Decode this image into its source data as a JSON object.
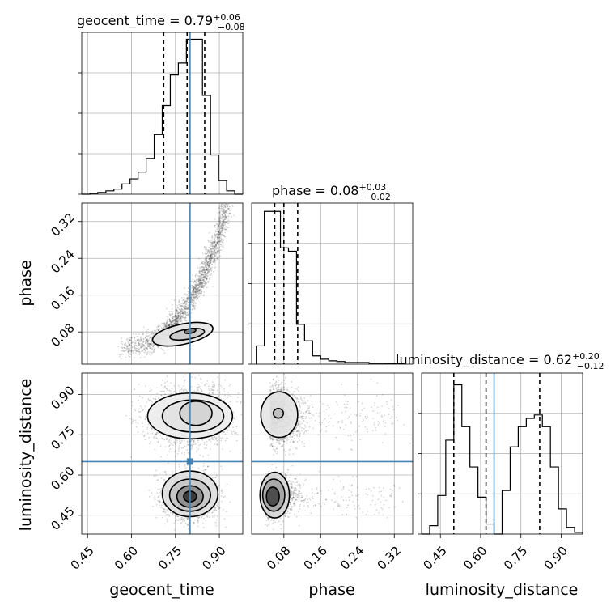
{
  "chart_data": {
    "type": "corner",
    "parameters": [
      "geocent_time",
      "phase",
      "luminosity_distance"
    ],
    "truth": {
      "geocent_time": 0.8,
      "phase": 0.07,
      "luminosity_distance": 0.65
    },
    "titles": [
      {
        "param": "geocent_time",
        "label": "geocent_time = 0.79",
        "plus": "+0.06",
        "minus": "−0.08"
      },
      {
        "param": "phase",
        "label": "phase = 0.08",
        "plus": "+0.03",
        "minus": "−0.02"
      },
      {
        "param": "luminosity_distance",
        "label": "luminosity_distance = 0.62",
        "plus": "+0.20",
        "minus": "−0.12"
      }
    ],
    "ranges": {
      "geocent_time": [
        0.43,
        0.98
      ],
      "phase": [
        0.01,
        0.36
      ],
      "luminosity_distance": [
        0.38,
        0.98
      ]
    },
    "ticks": {
      "geocent_time": [
        "0.45",
        "0.60",
        "0.75",
        "0.90"
      ],
      "phase": [
        "0.08",
        "0.16",
        "0.24",
        "0.32"
      ],
      "luminosity_distance": [
        "0.45",
        "0.60",
        "0.75",
        "0.90"
      ]
    },
    "quantiles": {
      "geocent_time": [
        0.71,
        0.79,
        0.85
      ],
      "phase": [
        0.06,
        0.08,
        0.11
      ],
      "luminosity_distance": [
        0.5,
        0.62,
        0.82
      ]
    },
    "hist_geocent_time": {
      "edges": [
        0.43,
        0.4575,
        0.485,
        0.5125,
        0.54,
        0.5675,
        0.595,
        0.6225,
        0.65,
        0.6775,
        0.705,
        0.7325,
        0.76,
        0.7875,
        0.815,
        0.8425,
        0.87,
        0.8975,
        0.925,
        0.9525,
        0.98
      ],
      "counts": [
        0,
        0.5,
        1,
        2,
        3,
        6,
        9,
        13,
        21,
        35,
        52,
        70,
        77,
        91,
        91,
        58,
        23,
        8,
        2,
        0
      ]
    },
    "hist_phase": {
      "edges": [
        0.02,
        0.0375,
        0.055,
        0.0725,
        0.09,
        0.1075,
        0.125,
        0.1425,
        0.16,
        0.1775,
        0.195,
        0.2125,
        0.23,
        0.2475,
        0.265,
        0.2825,
        0.3,
        0.3175,
        0.335
      ],
      "counts": [
        11,
        92,
        92,
        70,
        68,
        24,
        14,
        5,
        3,
        2,
        1.6,
        1,
        1,
        1,
        0.5,
        0.5,
        0.4,
        0.3
      ]
    },
    "hist_luminosity_distance": {
      "edges": [
        0.38,
        0.41,
        0.44,
        0.47,
        0.5,
        0.53,
        0.56,
        0.59,
        0.62,
        0.65,
        0.68,
        0.71,
        0.74,
        0.77,
        0.8,
        0.83,
        0.86,
        0.89,
        0.92,
        0.95,
        0.98
      ],
      "counts": [
        0,
        5,
        23,
        56,
        89,
        64,
        40,
        22,
        6,
        0,
        26,
        52,
        64,
        69,
        71,
        64,
        40,
        15,
        4,
        1
      ]
    },
    "hist_ymax": {
      "geocent_time": 95,
      "phase": 97,
      "luminosity_distance": 96
    }
  }
}
